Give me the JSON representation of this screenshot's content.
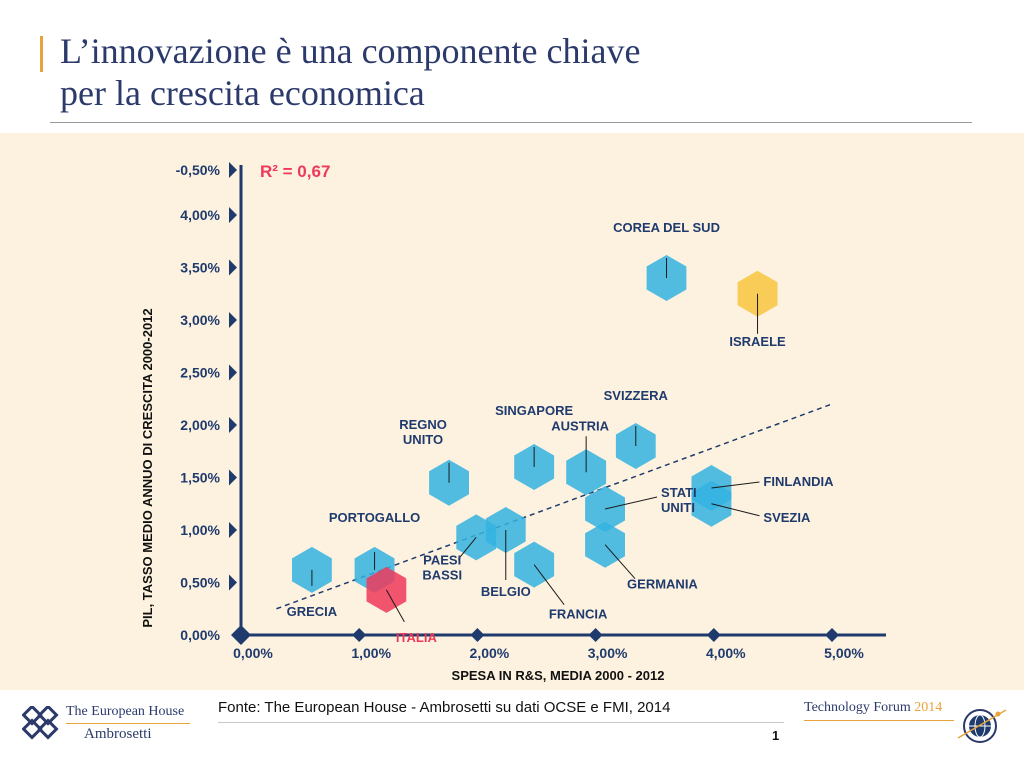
{
  "slide": {
    "title_line1": "L’innovazione è una componente chiave",
    "title_line2": "per la crescita economica",
    "source": "Fonte: The European House - Ambrosetti su dati OCSE e FMI, 2014",
    "page_number": "1"
  },
  "logos": {
    "left_line1": "The European House",
    "left_line2": "Ambrosetti",
    "right_name": "Technology Forum",
    "right_year": "2014"
  },
  "colors": {
    "background_panel": "#fdf2df",
    "hexagon_default": "#33b3e0",
    "hexagon_italy": "#ee3a5a",
    "hexagon_israel": "#f7c540",
    "axis": "#1f3b6e",
    "title": "#2b3a6b",
    "accent": "#e8a33a"
  },
  "chart_data": {
    "type": "scatter",
    "title": "",
    "annotation": "R² = 0,67",
    "xlabel": "SPESA IN R&S, MEDIA 2000 - 2012",
    "ylabel": "PIL, TASSO MEDIO ANNUO DI CRESCITA 2000-2012",
    "x_ticks": [
      "0,00%",
      "1,00%",
      "2,00%",
      "3,00%",
      "4,00%",
      "5,00%"
    ],
    "y_ticks": [
      "0,00%",
      "0,50%",
      "1,00%",
      "1,50%",
      "2,00%",
      "2,50%",
      "3,00%",
      "3,50%",
      "4,00%",
      "-0,50%"
    ],
    "xlim": [
      0,
      5.2
    ],
    "ylim": [
      0,
      4.4
    ],
    "trendline": {
      "x1": 0.3,
      "y1": 0.25,
      "x2": 5.0,
      "y2": 2.2
    },
    "points": [
      {
        "label": "GRECIA",
        "x": 0.6,
        "y": 0.62,
        "highlight": "default"
      },
      {
        "label": "PORTOGALLO",
        "x": 1.13,
        "y": 0.62,
        "highlight": "default"
      },
      {
        "label": "ITALIA",
        "x": 1.23,
        "y": 0.43,
        "highlight": "italy"
      },
      {
        "label": "PAESI BASSI",
        "x": 1.99,
        "y": 0.93,
        "highlight": "default"
      },
      {
        "label": "BELGIO",
        "x": 2.24,
        "y": 1.0,
        "highlight": "default"
      },
      {
        "label": "FRANCIA",
        "x": 2.48,
        "y": 0.67,
        "highlight": "default"
      },
      {
        "label": "REGNO UNITO",
        "x": 1.76,
        "y": 1.45,
        "highlight": "default"
      },
      {
        "label": "SINGAPORE",
        "x": 2.48,
        "y": 1.6,
        "highlight": "default"
      },
      {
        "label": "AUSTRIA",
        "x": 2.92,
        "y": 1.55,
        "highlight": "default"
      },
      {
        "label": "STATI UNITI",
        "x": 3.08,
        "y": 1.2,
        "highlight": "default"
      },
      {
        "label": "GERMANIA",
        "x": 3.08,
        "y": 0.86,
        "highlight": "default"
      },
      {
        "label": "SVIZZERA",
        "x": 3.34,
        "y": 1.8,
        "highlight": "default"
      },
      {
        "label": "COREA DEL SUD",
        "x": 3.6,
        "y": 3.4,
        "highlight": "default"
      },
      {
        "label": "ISRAELE",
        "x": 4.37,
        "y": 3.25,
        "highlight": "israel"
      },
      {
        "label": "FINLANDIA",
        "x": 3.98,
        "y": 1.4,
        "highlight": "default"
      },
      {
        "label": "SVEZIA",
        "x": 3.98,
        "y": 1.25,
        "highlight": "default"
      }
    ]
  }
}
